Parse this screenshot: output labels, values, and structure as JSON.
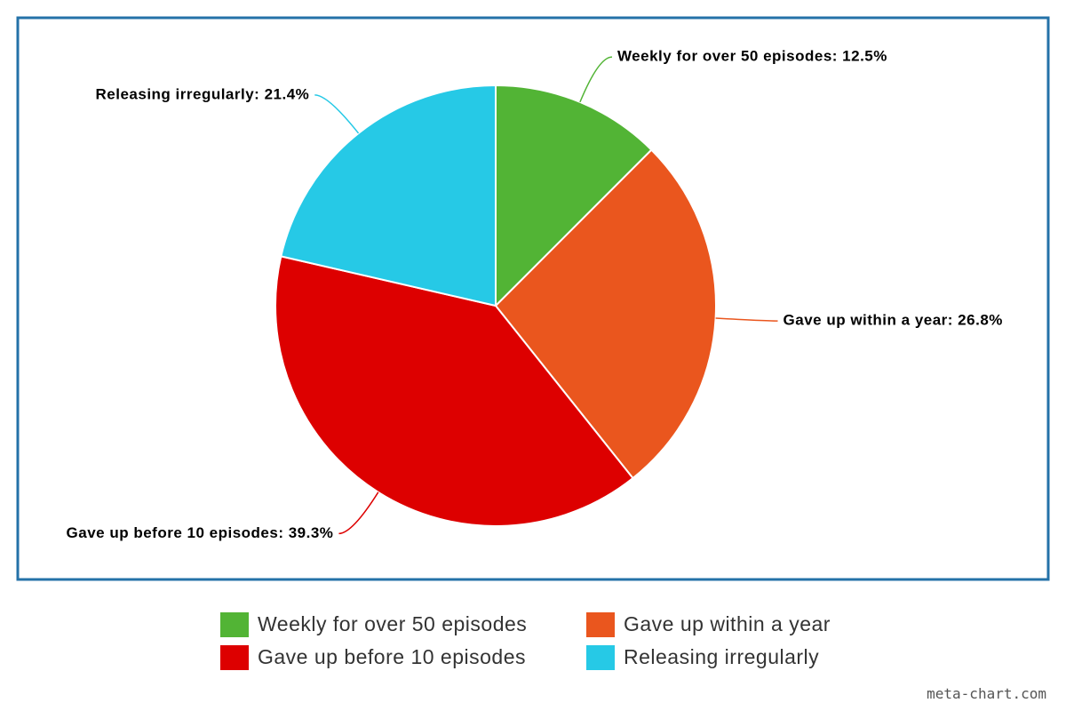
{
  "chart_data": {
    "type": "pie",
    "categories": [
      "Weekly for over 50 episodes",
      "Gave up within a year",
      "Gave up before 10 episodes",
      "Releasing irregularly"
    ],
    "values": [
      12.5,
      26.8,
      39.3,
      21.4
    ],
    "value_labels": [
      "Weekly for over 50 episodes: 12.5%",
      "Gave up within a year: 26.8%",
      "Gave up before 10 episodes: 39.3%",
      "Releasing irregularly: 21.4%"
    ],
    "colors": [
      "#52b435",
      "#ea561e",
      "#dd0000",
      "#26c9e6"
    ],
    "watermark": "meta-chart.com"
  }
}
